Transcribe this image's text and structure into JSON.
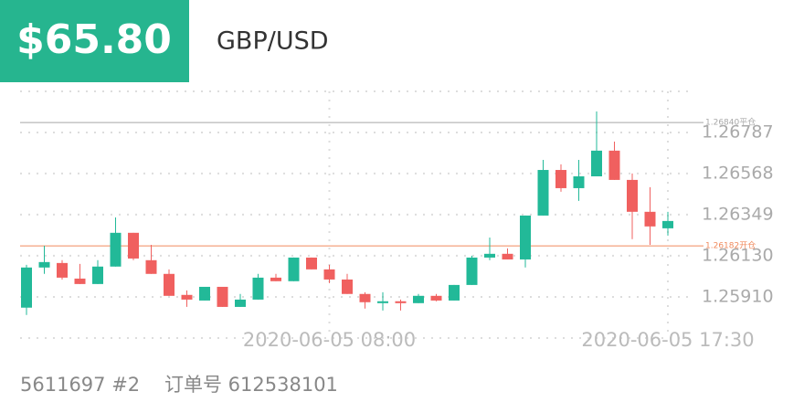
{
  "header": {
    "amount": "$65.80",
    "symbol": "GBP/USD"
  },
  "chart_data": {
    "type": "candlestick",
    "categories": [
      null,
      null,
      null,
      null,
      null,
      null,
      null,
      null,
      null,
      null,
      null,
      null,
      null,
      null,
      null,
      null,
      null,
      "2020-06-05 08:00",
      null,
      null,
      null,
      null,
      null,
      null,
      null,
      null,
      null,
      null,
      null,
      null,
      null,
      null,
      null,
      null,
      null,
      null,
      "2020-06-05 17:30"
    ],
    "open": [
      1.25853,
      1.26067,
      1.26091,
      1.26008,
      1.25979,
      1.26072,
      1.26252,
      1.26106,
      1.26033,
      1.25921,
      1.25891,
      1.25964,
      1.25857,
      1.25896,
      1.26013,
      1.25994,
      1.2612,
      1.26057,
      1.26003,
      1.25926,
      1.25877,
      1.25887,
      1.25877,
      1.25916,
      1.25891,
      1.25974,
      1.2612,
      1.2614,
      1.2611,
      1.26344,
      1.26587,
      1.2649,
      1.26553,
      1.2669,
      1.26534,
      1.26364,
      1.26276
    ],
    "high": [
      1.26081,
      1.26183,
      1.26106,
      1.26086,
      1.26106,
      1.26334,
      1.26252,
      1.26188,
      1.26057,
      1.25945,
      1.25964,
      1.25964,
      1.25926,
      1.26033,
      1.26033,
      1.2612,
      1.2612,
      1.26081,
      1.26033,
      1.25935,
      1.25935,
      1.25896,
      1.25926,
      1.25926,
      1.25974,
      1.2613,
      1.26227,
      1.26169,
      1.26344,
      1.26641,
      1.26617,
      1.26641,
      1.26899,
      1.26738,
      1.26568,
      1.26495,
      1.26364
    ],
    "low": [
      1.25814,
      1.26033,
      1.26003,
      1.25979,
      1.25979,
      1.26072,
      1.26106,
      1.26033,
      1.25916,
      1.25857,
      1.25891,
      1.25857,
      1.25857,
      1.25896,
      1.25994,
      1.25994,
      1.26057,
      1.25984,
      1.25926,
      1.25848,
      1.25838,
      1.25838,
      1.25877,
      1.25887,
      1.25891,
      1.25974,
      1.26106,
      1.2611,
      1.26067,
      1.26344,
      1.26471,
      1.26422,
      1.26553,
      1.26534,
      1.26218,
      1.26188,
      1.26237
    ],
    "close": [
      1.26067,
      1.26096,
      1.26013,
      1.25979,
      1.26072,
      1.26252,
      1.26115,
      1.26033,
      1.25916,
      1.25896,
      1.25964,
      1.25857,
      1.25896,
      1.26013,
      1.25994,
      1.2612,
      1.26057,
      1.26003,
      1.25926,
      1.25882,
      1.25887,
      1.25877,
      1.25916,
      1.25891,
      1.25974,
      1.2612,
      1.2614,
      1.2611,
      1.26344,
      1.26587,
      1.2649,
      1.26553,
      1.2669,
      1.26534,
      1.26364,
      1.26286,
      1.26315
    ],
    "up_color": "#22b998",
    "down_color": "#f0605f",
    "ylim": [
      1.25691,
      1.27006
    ],
    "yticks": [
      {
        "value": 1.2591,
        "label": "1.25910"
      },
      {
        "value": 1.2613,
        "label": "1.26130"
      },
      1.26349,
      1.26568,
      1.26787
    ],
    "grid": true,
    "reference_lines": [
      {
        "value": 1.2684,
        "label": "1.26840平仓",
        "color": "#a8a8a8"
      },
      {
        "value": 1.26182,
        "label": "1.26182开仓",
        "color": "#f08a5d"
      }
    ]
  },
  "footer": {
    "order": "5611697 #2",
    "order_no": "订单号 612538101"
  }
}
